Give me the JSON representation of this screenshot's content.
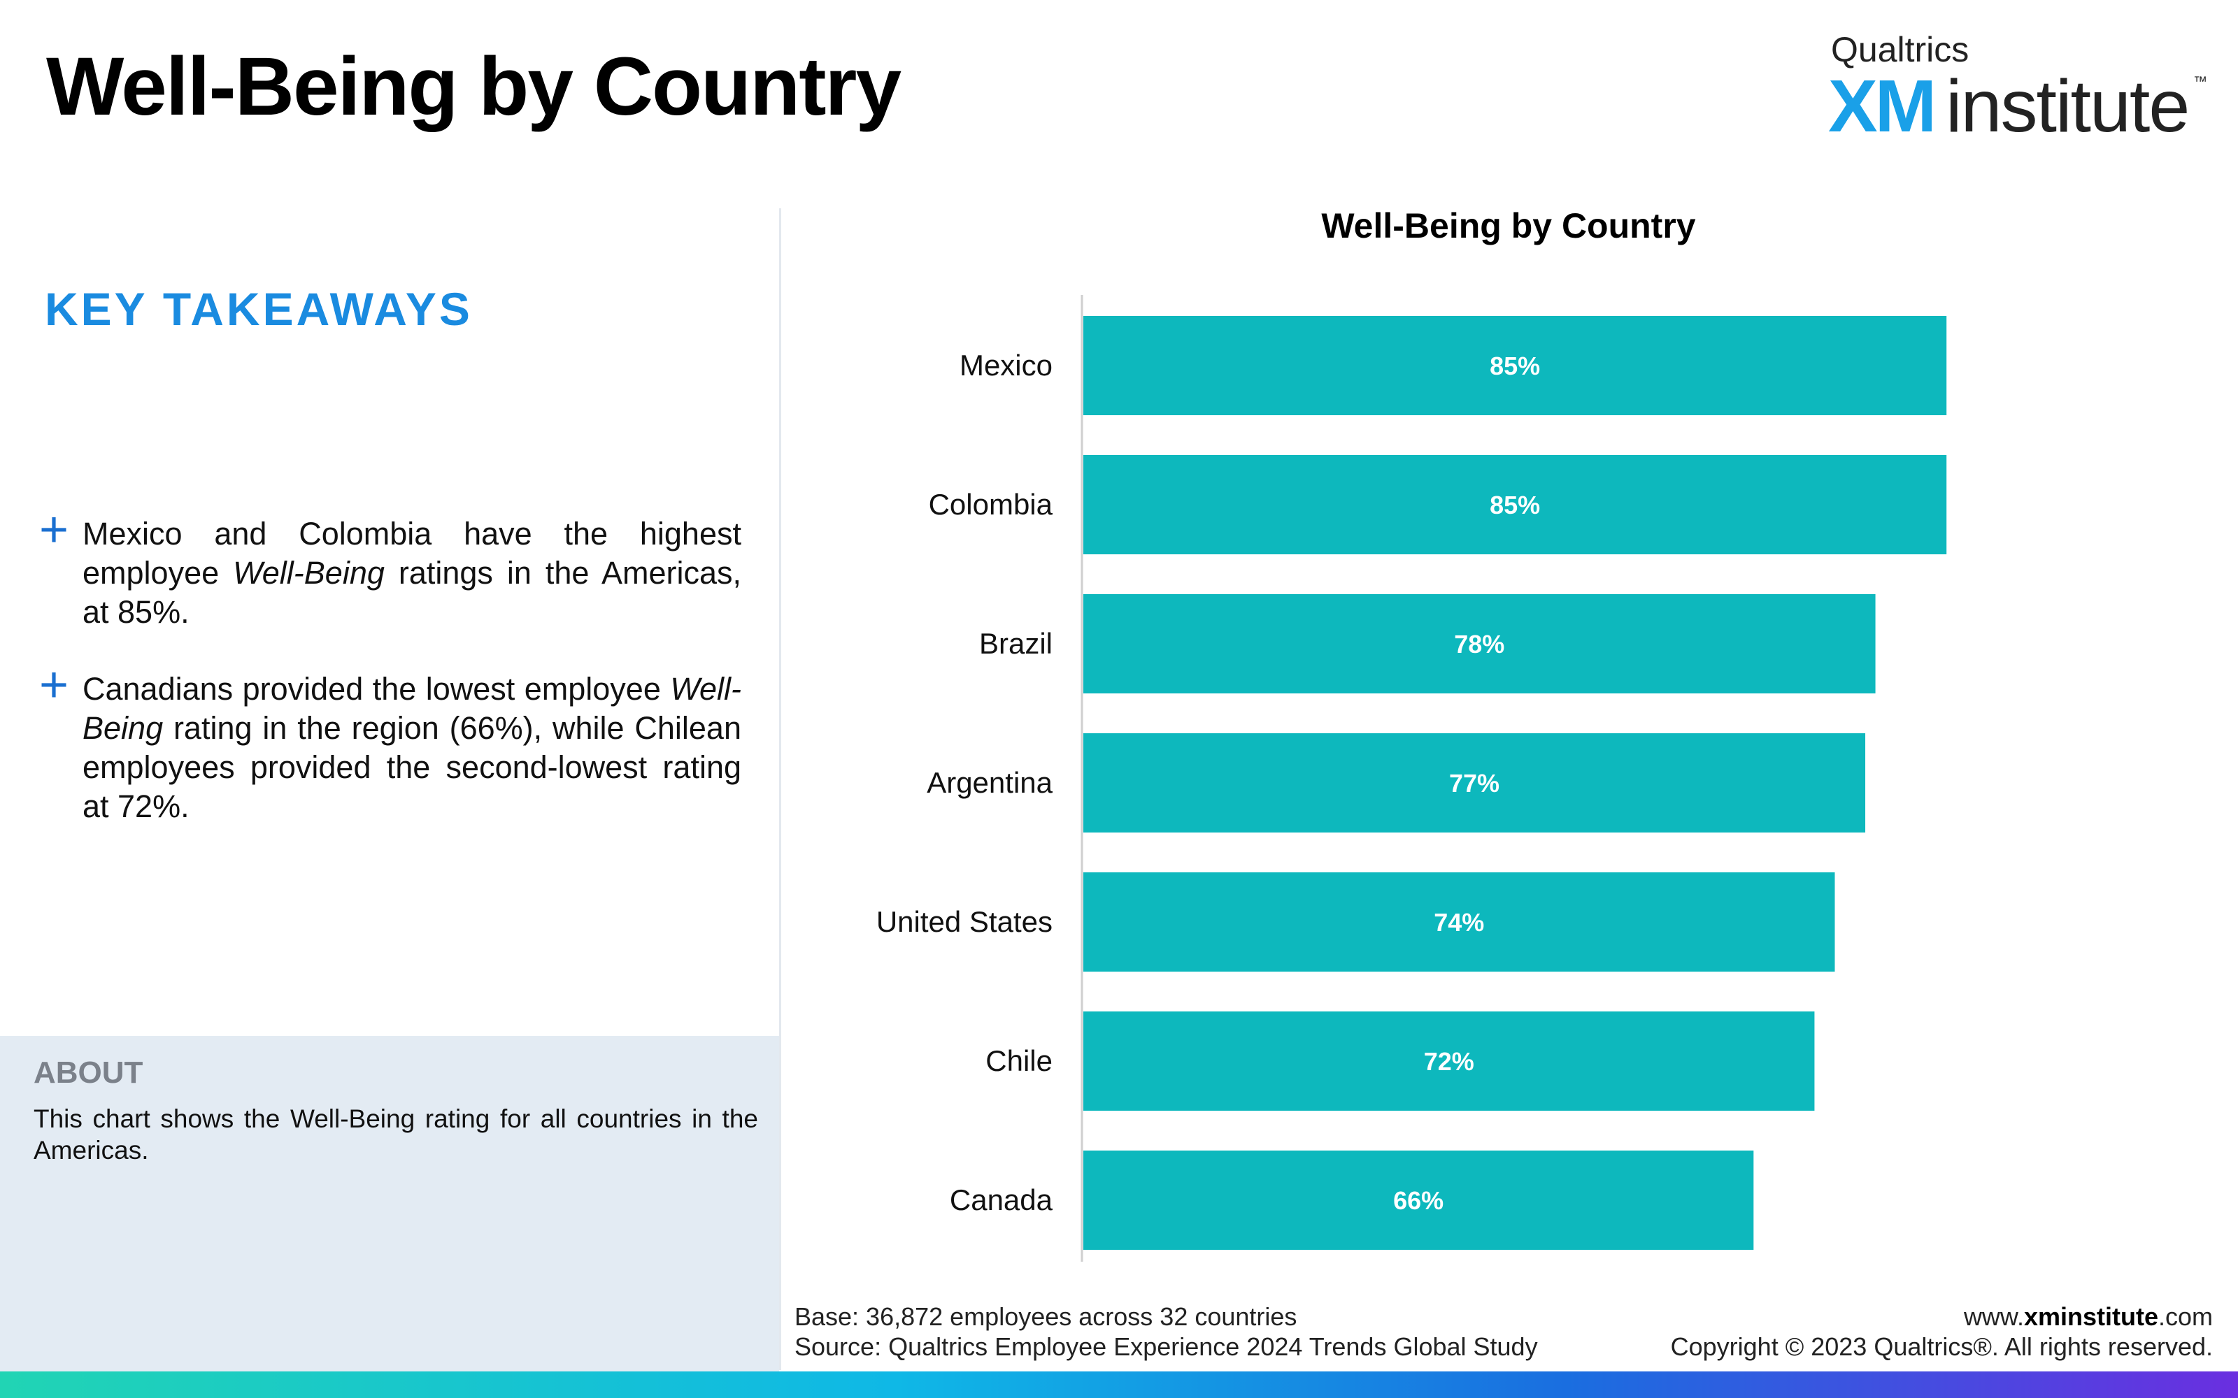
{
  "header": {
    "title": "Well-Being by Country"
  },
  "brand": {
    "small_text": "Qualtrics",
    "xm_text": "XM",
    "institute_text": "institute",
    "trademark": "™"
  },
  "takeaways": {
    "heading": "KEY TAKEAWAYS",
    "bullets": [
      {
        "part1": "Mexico and Colombia have the highest employee ",
        "italic": "Well-Being",
        "part2": " ratings in the Americas, at 85%."
      },
      {
        "part1": "Canadians provided the lowest employee ",
        "italic": "Well-Being",
        "part2": " rating in the region (66%), while Chilean employees provided the second-lowest rating at 72%."
      }
    ],
    "bullet_symbol": "+"
  },
  "about": {
    "title": "ABOUT",
    "text": "This chart shows the Well-Being rating for all countries in the Americas."
  },
  "chart_data": {
    "type": "bar",
    "orientation": "horizontal",
    "title": "Well-Being by Country",
    "categories": [
      "Mexico",
      "Colombia",
      "Brazil",
      "Argentina",
      "United States",
      "Chile",
      "Canada"
    ],
    "values": [
      85,
      85,
      78,
      77,
      74,
      72,
      66
    ],
    "value_labels": [
      "85%",
      "85%",
      "78%",
      "77%",
      "74%",
      "72%",
      "66%"
    ],
    "unit": "%",
    "xlim": [
      0,
      100
    ],
    "grid": false,
    "legend": "none",
    "bar_color": "#0db8bd",
    "label_color": "#ffffff"
  },
  "footer": {
    "base": "Base: 36,872 employees across 32 countries",
    "source": "Source: Qualtrics Employee Experience 2024 Trends Global Study",
    "site_prefix": "www.",
    "site_bold": "xminstitute",
    "site_suffix": ".com",
    "copyright": "Copyright © 2023 Qualtrics®. All rights reserved."
  }
}
